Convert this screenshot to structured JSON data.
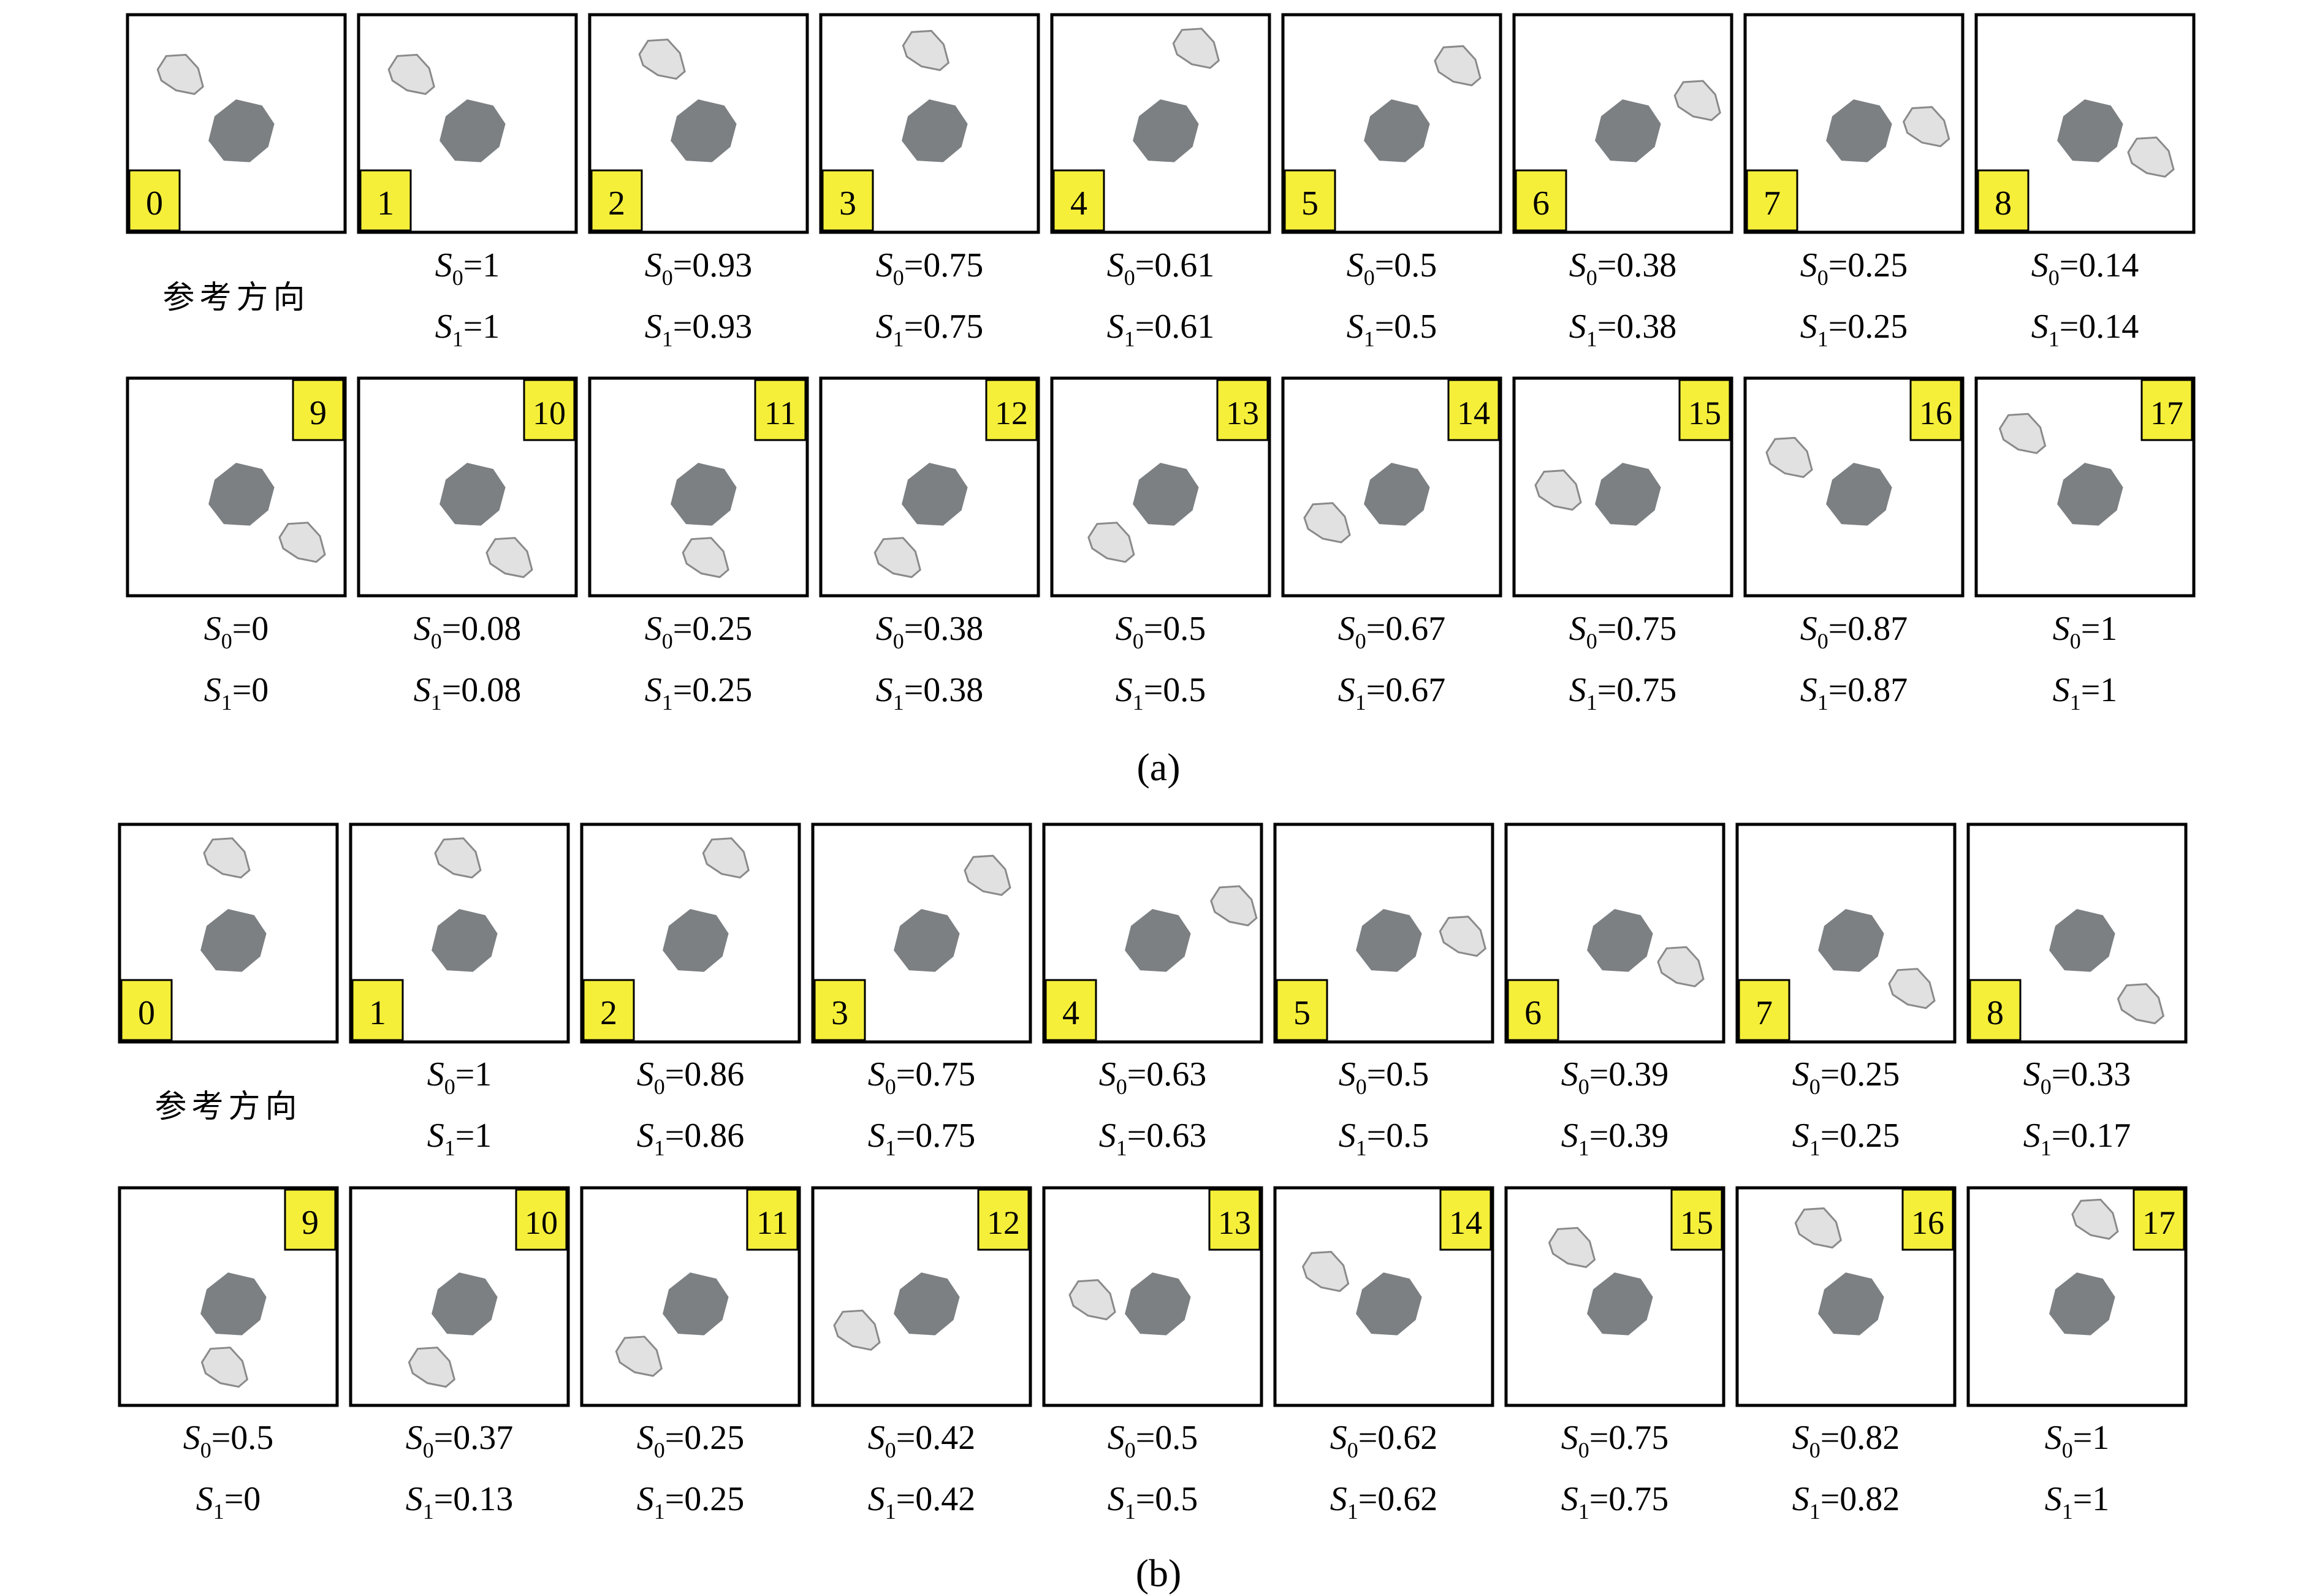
{
  "reference_label": "参考方向",
  "var_s0": "S",
  "sub0": "0",
  "sub1": "1",
  "colors": {
    "box_border": "#000000",
    "badge": "#f5ef3a",
    "center_rock": "#7c8083",
    "moving_rock": "#e1e1e1"
  },
  "panels": [
    {
      "label": "(a)",
      "frames": [
        {
          "n": "0",
          "s0": "",
          "s1": ""
        },
        {
          "n": "1",
          "s0": "1",
          "s1": "1"
        },
        {
          "n": "2",
          "s0": "0.93",
          "s1": "0.93"
        },
        {
          "n": "3",
          "s0": "0.75",
          "s1": "0.75"
        },
        {
          "n": "4",
          "s0": "0.61",
          "s1": "0.61"
        },
        {
          "n": "5",
          "s0": "0.5",
          "s1": "0.5"
        },
        {
          "n": "6",
          "s0": "0.38",
          "s1": "0.38"
        },
        {
          "n": "7",
          "s0": "0.25",
          "s1": "0.25"
        },
        {
          "n": "8",
          "s0": "0.14",
          "s1": "0.14"
        },
        {
          "n": "9",
          "s0": "0",
          "s1": "0"
        },
        {
          "n": "10",
          "s0": "0.08",
          "s1": "0.08"
        },
        {
          "n": "11",
          "s0": "0.25",
          "s1": "0.25"
        },
        {
          "n": "12",
          "s0": "0.38",
          "s1": "0.38"
        },
        {
          "n": "13",
          "s0": "0.5",
          "s1": "0.5"
        },
        {
          "n": "14",
          "s0": "0.67",
          "s1": "0.67"
        },
        {
          "n": "15",
          "s0": "0.75",
          "s1": "0.75"
        },
        {
          "n": "16",
          "s0": "0.87",
          "s1": "0.87"
        },
        {
          "n": "17",
          "s0": "1",
          "s1": "1"
        }
      ]
    },
    {
      "label": "(b)",
      "frames": [
        {
          "n": "0",
          "s0": "",
          "s1": ""
        },
        {
          "n": "1",
          "s0": "1",
          "s1": "1"
        },
        {
          "n": "2",
          "s0": "0.86",
          "s1": "0.86"
        },
        {
          "n": "3",
          "s0": "0.75",
          "s1": "0.75"
        },
        {
          "n": "4",
          "s0": "0.63",
          "s1": "0.63"
        },
        {
          "n": "5",
          "s0": "0.5",
          "s1": "0.5"
        },
        {
          "n": "6",
          "s0": "0.39",
          "s1": "0.39"
        },
        {
          "n": "7",
          "s0": "0.25",
          "s1": "0.25"
        },
        {
          "n": "8",
          "s0": "0.33",
          "s1": "0.17"
        },
        {
          "n": "9",
          "s0": "0.5",
          "s1": "0"
        },
        {
          "n": "10",
          "s0": "0.37",
          "s1": "0.13"
        },
        {
          "n": "11",
          "s0": "0.25",
          "s1": "0.25"
        },
        {
          "n": "12",
          "s0": "0.42",
          "s1": "0.42"
        },
        {
          "n": "13",
          "s0": "0.5",
          "s1": "0.5"
        },
        {
          "n": "14",
          "s0": "0.62",
          "s1": "0.62"
        },
        {
          "n": "15",
          "s0": "0.75",
          "s1": "0.75"
        },
        {
          "n": "16",
          "s0": "0.82",
          "s1": "0.82"
        },
        {
          "n": "17",
          "s0": "1",
          "s1": "1"
        }
      ]
    }
  ]
}
